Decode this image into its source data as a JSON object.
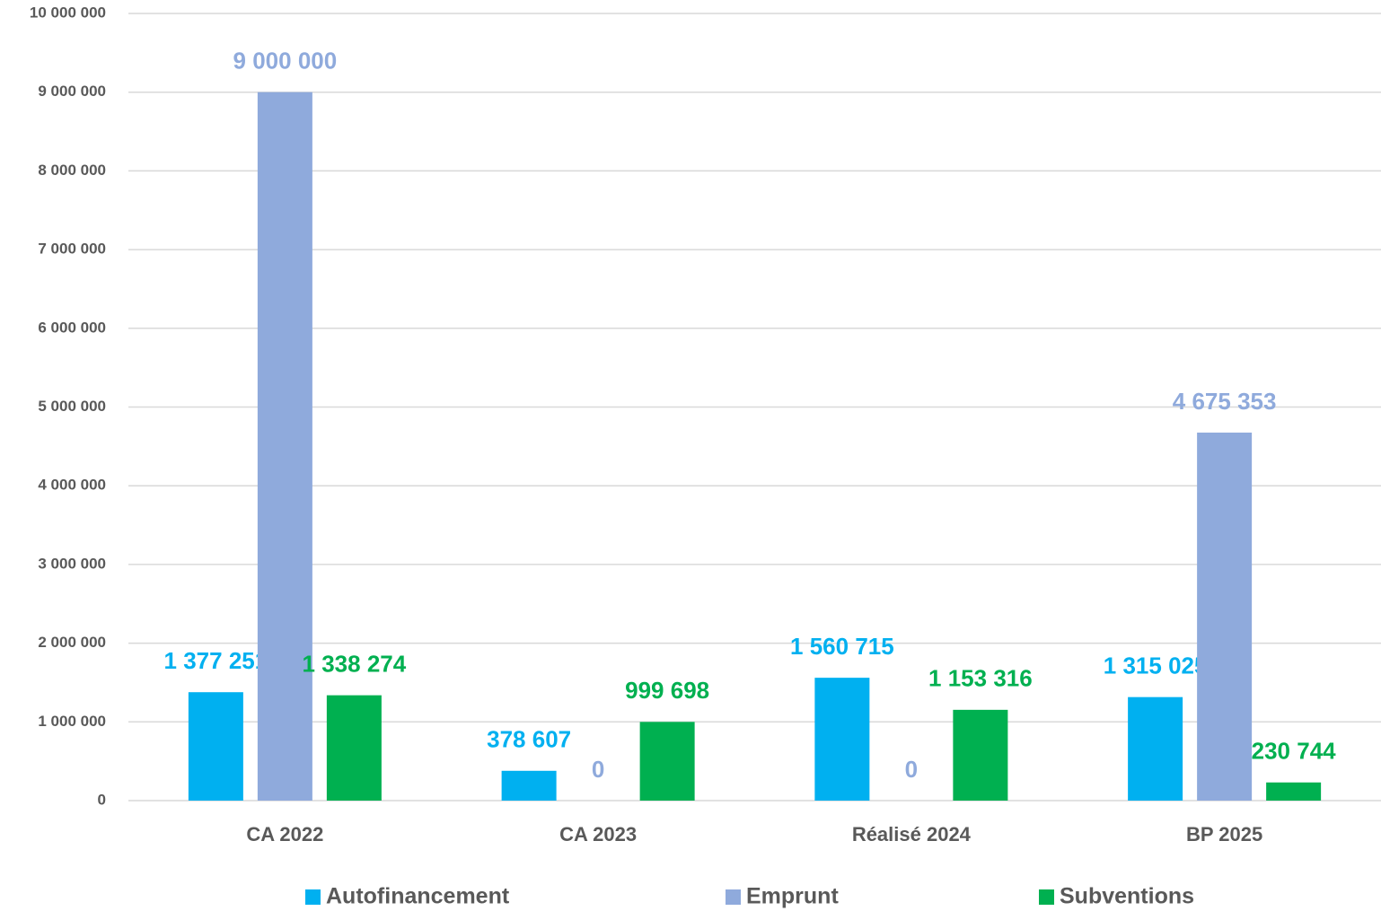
{
  "chart_data": {
    "type": "bar",
    "categories": [
      "CA 2022",
      "CA 2023",
      "Réalisé 2024",
      "BP 2025"
    ],
    "series": [
      {
        "name": "Autofinancement",
        "color": "#00b0f0",
        "values": [
          1377251,
          378607,
          1560715,
          1315025
        ],
        "value_labels": [
          "1 377 251",
          "378 607",
          "1 560 715",
          "1 315 025"
        ]
      },
      {
        "name": "Emprunt",
        "color": "#8faadc",
        "values": [
          9000000,
          0,
          0,
          4675353
        ],
        "value_labels": [
          "9 000 000",
          "0",
          "0",
          "4 675 353"
        ]
      },
      {
        "name": "Subventions",
        "color": "#00b050",
        "values": [
          1338274,
          999698,
          1153316,
          230744
        ],
        "value_labels": [
          "1 338 274",
          "999 698",
          "1 153 316",
          "230 744"
        ]
      }
    ],
    "ylim": [
      0,
      10000000
    ],
    "yticks": [
      {
        "value": 0,
        "label": "0"
      },
      {
        "value": 1000000,
        "label": "1 000 000"
      },
      {
        "value": 2000000,
        "label": "2 000 000"
      },
      {
        "value": 3000000,
        "label": "3 000 000"
      },
      {
        "value": 4000000,
        "label": "4 000 000"
      },
      {
        "value": 5000000,
        "label": "5 000 000"
      },
      {
        "value": 6000000,
        "label": "6 000 000"
      },
      {
        "value": 7000000,
        "label": "7 000 000"
      },
      {
        "value": 8000000,
        "label": "8 000 000"
      },
      {
        "value": 9000000,
        "label": "9 000 000"
      },
      {
        "value": 10000000,
        "label": "10 000 000"
      }
    ],
    "grid": true,
    "legend": "bottom"
  }
}
